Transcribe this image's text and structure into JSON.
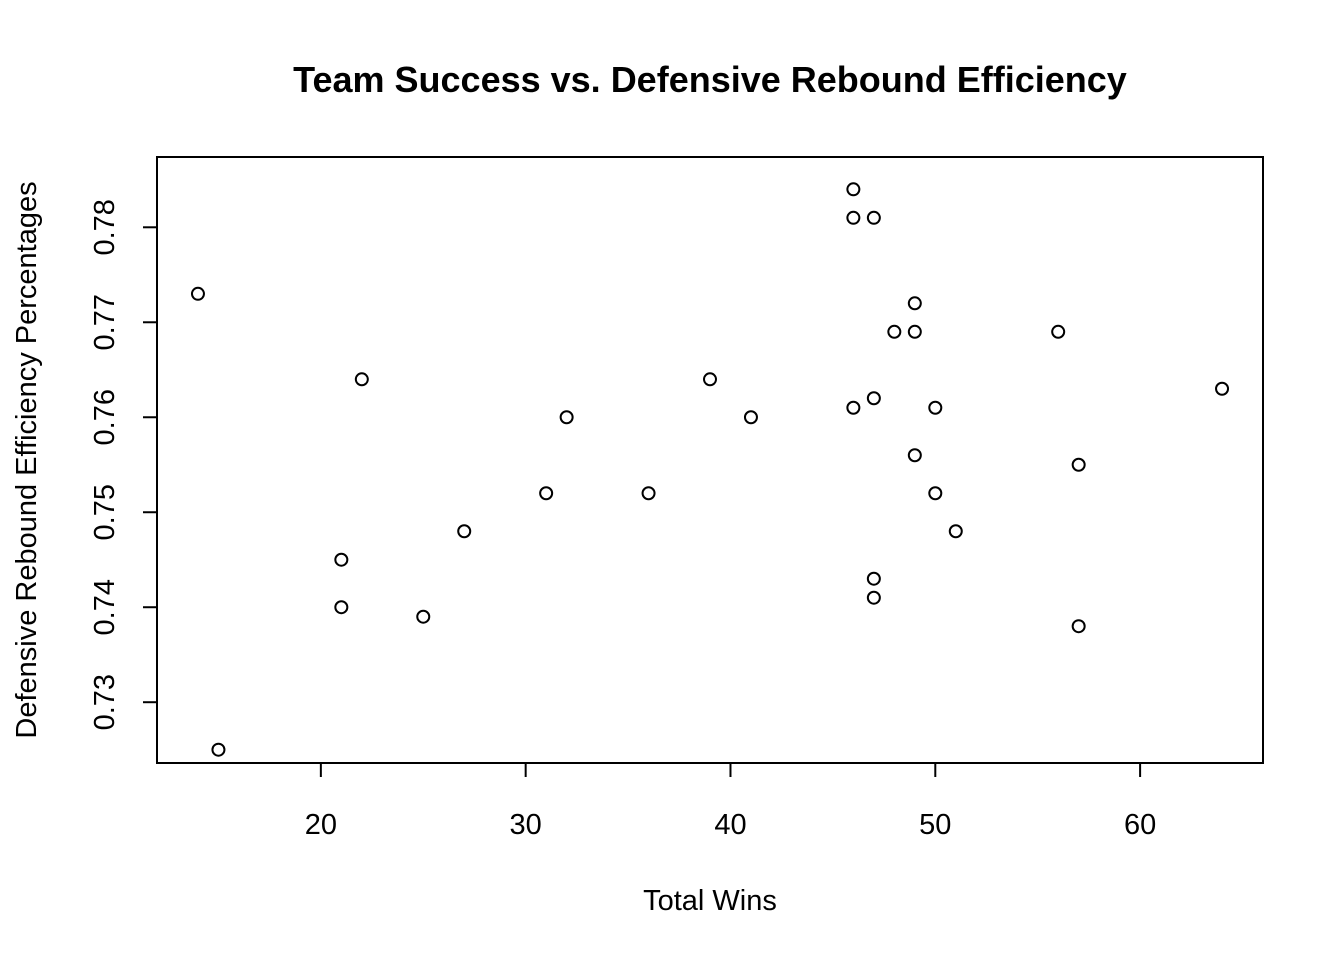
{
  "chart_data": {
    "type": "scatter",
    "title": "Team Success vs. Defensive Rebound Efficiency",
    "xlabel": "Total Wins",
    "ylabel": "Defensive Rebound Efficiency Percentages",
    "xlim": [
      12,
      66
    ],
    "ylim": [
      0.7236,
      0.7874
    ],
    "x_ticks": [
      20,
      30,
      40,
      50,
      60
    ],
    "x_tick_labels": [
      "20",
      "30",
      "40",
      "50",
      "60"
    ],
    "y_ticks": [
      0.73,
      0.74,
      0.75,
      0.76,
      0.77,
      0.78
    ],
    "y_tick_labels": [
      "0.73",
      "0.74",
      "0.75",
      "0.76",
      "0.77",
      "0.78"
    ],
    "grid": false,
    "legend": "none",
    "marker": "open-circle",
    "points": [
      {
        "x": 14,
        "y": 0.773
      },
      {
        "x": 15,
        "y": 0.725
      },
      {
        "x": 21,
        "y": 0.745
      },
      {
        "x": 21,
        "y": 0.74
      },
      {
        "x": 22,
        "y": 0.764
      },
      {
        "x": 25,
        "y": 0.739
      },
      {
        "x": 27,
        "y": 0.748
      },
      {
        "x": 31,
        "y": 0.752
      },
      {
        "x": 32,
        "y": 0.76
      },
      {
        "x": 36,
        "y": 0.752
      },
      {
        "x": 39,
        "y": 0.764
      },
      {
        "x": 41,
        "y": 0.76
      },
      {
        "x": 46,
        "y": 0.784
      },
      {
        "x": 46,
        "y": 0.781
      },
      {
        "x": 46,
        "y": 0.761
      },
      {
        "x": 47,
        "y": 0.781
      },
      {
        "x": 47,
        "y": 0.762
      },
      {
        "x": 47,
        "y": 0.743
      },
      {
        "x": 47,
        "y": 0.741
      },
      {
        "x": 48,
        "y": 0.769
      },
      {
        "x": 49,
        "y": 0.772
      },
      {
        "x": 49,
        "y": 0.769
      },
      {
        "x": 49,
        "y": 0.756
      },
      {
        "x": 50,
        "y": 0.761
      },
      {
        "x": 50,
        "y": 0.752
      },
      {
        "x": 51,
        "y": 0.748
      },
      {
        "x": 56,
        "y": 0.769
      },
      {
        "x": 57,
        "y": 0.755
      },
      {
        "x": 57,
        "y": 0.738
      },
      {
        "x": 64,
        "y": 0.763
      }
    ]
  }
}
